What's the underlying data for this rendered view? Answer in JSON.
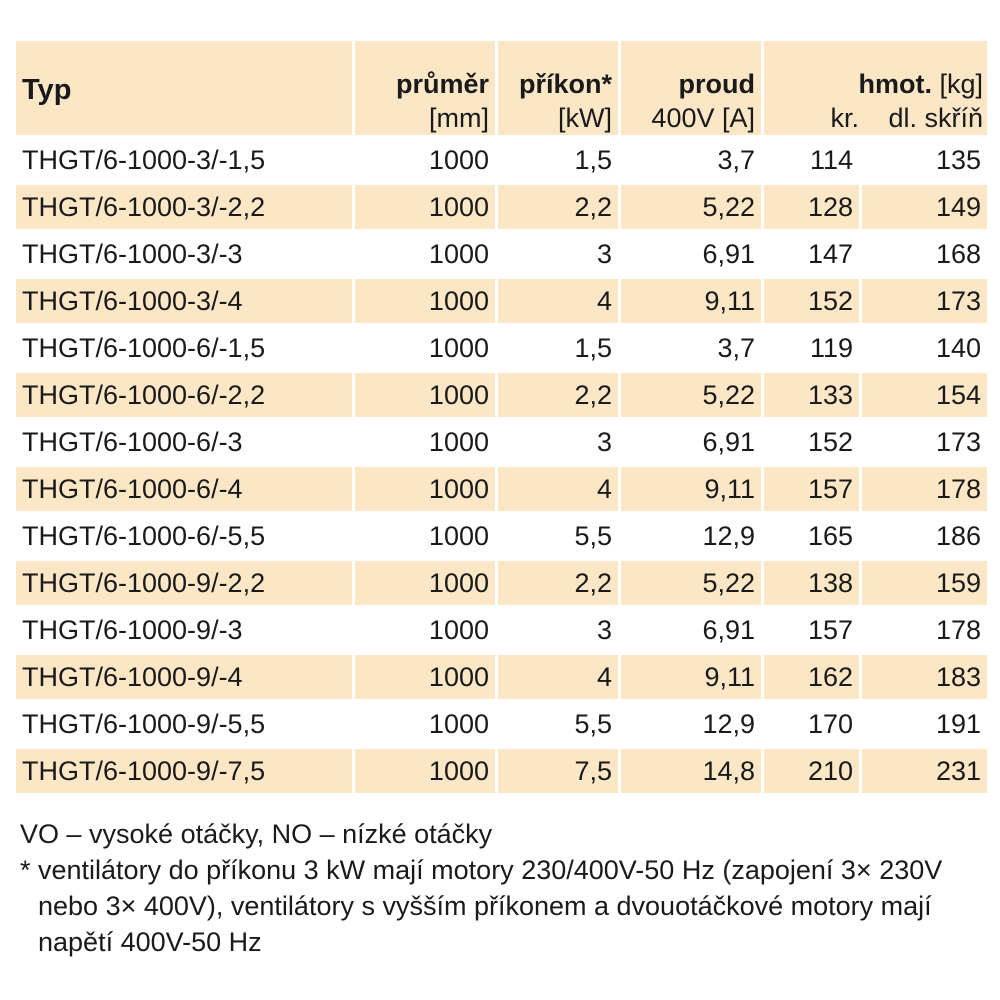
{
  "table": {
    "headers": {
      "typ": "Typ",
      "diameter_title": "průměr",
      "diameter_unit": "[mm]",
      "power_title": "příkon*",
      "power_unit": "[kW]",
      "current_title": "proud",
      "current_unit": "400V [A]",
      "weight_title": "hmot.",
      "weight_unit": "[kg]",
      "weight_sub_kr": "kr.",
      "weight_sub_dl": "dl. skříň"
    },
    "rows": [
      {
        "typ": "THGT/6-1000-3/-1,5",
        "diameter": "1000",
        "power": "1,5",
        "current": "3,7",
        "weight_kr": "114",
        "weight_dl": "135"
      },
      {
        "typ": "THGT/6-1000-3/-2,2",
        "diameter": "1000",
        "power": "2,2",
        "current": "5,22",
        "weight_kr": "128",
        "weight_dl": "149"
      },
      {
        "typ": "THGT/6-1000-3/-3",
        "diameter": "1000",
        "power": "3",
        "current": "6,91",
        "weight_kr": "147",
        "weight_dl": "168"
      },
      {
        "typ": "THGT/6-1000-3/-4",
        "diameter": "1000",
        "power": "4",
        "current": "9,11",
        "weight_kr": "152",
        "weight_dl": "173"
      },
      {
        "typ": "THGT/6-1000-6/-1,5",
        "diameter": "1000",
        "power": "1,5",
        "current": "3,7",
        "weight_kr": "119",
        "weight_dl": "140"
      },
      {
        "typ": "THGT/6-1000-6/-2,2",
        "diameter": "1000",
        "power": "2,2",
        "current": "5,22",
        "weight_kr": "133",
        "weight_dl": "154"
      },
      {
        "typ": "THGT/6-1000-6/-3",
        "diameter": "1000",
        "power": "3",
        "current": "6,91",
        "weight_kr": "152",
        "weight_dl": "173"
      },
      {
        "typ": "THGT/6-1000-6/-4",
        "diameter": "1000",
        "power": "4",
        "current": "9,11",
        "weight_kr": "157",
        "weight_dl": "178"
      },
      {
        "typ": "THGT/6-1000-6/-5,5",
        "diameter": "1000",
        "power": "5,5",
        "current": "12,9",
        "weight_kr": "165",
        "weight_dl": "186"
      },
      {
        "typ": "THGT/6-1000-9/-2,2",
        "diameter": "1000",
        "power": "2,2",
        "current": "5,22",
        "weight_kr": "138",
        "weight_dl": "159"
      },
      {
        "typ": "THGT/6-1000-9/-3",
        "diameter": "1000",
        "power": "3",
        "current": "6,91",
        "weight_kr": "157",
        "weight_dl": "178"
      },
      {
        "typ": "THGT/6-1000-9/-4",
        "diameter": "1000",
        "power": "4",
        "current": "9,11",
        "weight_kr": "162",
        "weight_dl": "183"
      },
      {
        "typ": "THGT/6-1000-9/-5,5",
        "diameter": "1000",
        "power": "5,5",
        "current": "12,9",
        "weight_kr": "170",
        "weight_dl": "191"
      },
      {
        "typ": "THGT/6-1000-9/-7,5",
        "diameter": "1000",
        "power": "7,5",
        "current": "14,8",
        "weight_kr": "210",
        "weight_dl": "231"
      }
    ]
  },
  "notes": {
    "legend": "VO – vysoké otáčky, NO – nízké otáčky",
    "footnote": "* ventilátory do příkonu 3 kW mají motory 230/400V-50 Hz (zapojení 3× 230V nebo 3× 400V), ventilátory s vyšším příkonem a dvouotáčkové motory mají napětí 400V-50 Hz"
  },
  "colors": {
    "stripe": "#fbe6c6",
    "text": "#1a1a1a",
    "background": "#ffffff"
  }
}
